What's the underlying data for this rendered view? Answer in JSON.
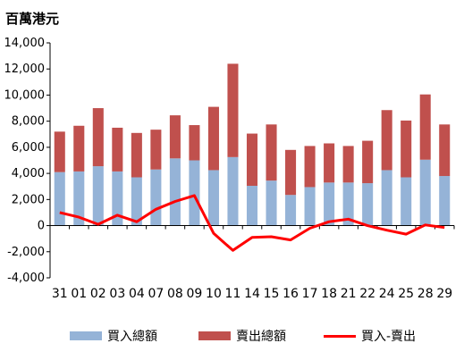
{
  "chart_data": {
    "type": "bar+line",
    "title": "百萬港元",
    "categories": [
      "31",
      "01",
      "02",
      "03",
      "04",
      "07",
      "08",
      "09",
      "10",
      "11",
      "14",
      "15",
      "16",
      "17",
      "18",
      "21",
      "22",
      "24",
      "25",
      "28",
      "29"
    ],
    "series": [
      {
        "name": "買入總額",
        "kind": "stacked-bar",
        "color": "#95b3d7",
        "values": [
          4100,
          4150,
          4550,
          4150,
          3700,
          4300,
          5150,
          5000,
          4250,
          5250,
          3050,
          3450,
          2350,
          2950,
          3300,
          3300,
          3250,
          4250,
          3700,
          5050,
          3800
        ]
      },
      {
        "name": "賣出總額",
        "kind": "stacked-bar",
        "color": "#c0504d",
        "values": [
          3100,
          3500,
          4450,
          3350,
          3400,
          3050,
          3300,
          2700,
          4850,
          7150,
          4000,
          4300,
          3450,
          3150,
          3000,
          2800,
          3250,
          4600,
          4350,
          5000,
          3950
        ]
      },
      {
        "name": "買入-賣出",
        "kind": "line",
        "color": "#ff0000",
        "values": [
          1000,
          650,
          100,
          800,
          300,
          1250,
          1850,
          2300,
          -600,
          -1900,
          -900,
          -850,
          -1100,
          -200,
          300,
          500,
          0,
          -350,
          -650,
          50,
          -150
        ]
      }
    ],
    "ylim": [
      -4000,
      14000
    ],
    "yticks": [
      "-4,000",
      "-2,000",
      "0",
      "2,000",
      "4,000",
      "6,000",
      "8,000",
      "10,000",
      "12,000",
      "14,000"
    ],
    "ytick_values": [
      -4000,
      -2000,
      0,
      2000,
      4000,
      6000,
      8000,
      10000,
      12000,
      14000
    ],
    "legend_position": "bottom",
    "grid": false
  }
}
